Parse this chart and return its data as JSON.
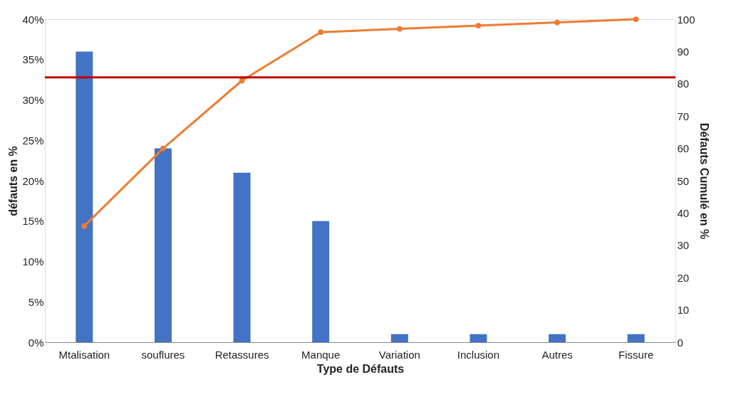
{
  "chart_data": {
    "type": "bar",
    "xlabel": "Type de Défauts",
    "ylabel": "défauts en %",
    "y2label": "Défauts Cumulé en %",
    "categories": [
      "Mtalisation",
      "souflures",
      "Retassures",
      "Manque",
      "Variation",
      "Inclusion",
      "Autres",
      "Fissure"
    ],
    "series": [
      {
        "color": "#4472c4",
        "values": [
          36,
          24,
          21,
          15,
          1,
          1,
          1,
          1
        ]
      },
      {
        "type": "line",
        "axis": "y2",
        "color": "#ed7d31",
        "marker": "circle",
        "values": [
          36,
          60,
          81,
          96,
          97,
          98,
          99,
          100
        ]
      }
    ],
    "ylim": [
      0,
      40
    ],
    "yticks": [
      {
        "value": 0,
        "label": "0%"
      },
      {
        "value": 5,
        "label": "5%"
      },
      {
        "value": 10,
        "label": "10%"
      },
      {
        "value": 15,
        "label": "15%"
      },
      {
        "value": 20,
        "label": "20%"
      },
      {
        "value": 25,
        "label": "25%"
      },
      {
        "value": 30,
        "label": "30%"
      },
      {
        "value": 35,
        "label": "35%"
      },
      {
        "value": 40,
        "label": "40%"
      }
    ],
    "y2lim": [
      0,
      100
    ],
    "y2ticks": [
      0,
      10,
      20,
      30,
      40,
      50,
      60,
      70,
      80,
      90,
      100
    ],
    "ref_lines": [
      {
        "axis": "y2",
        "value": 82,
        "color": "#c00000"
      }
    ],
    "grid": false
  }
}
